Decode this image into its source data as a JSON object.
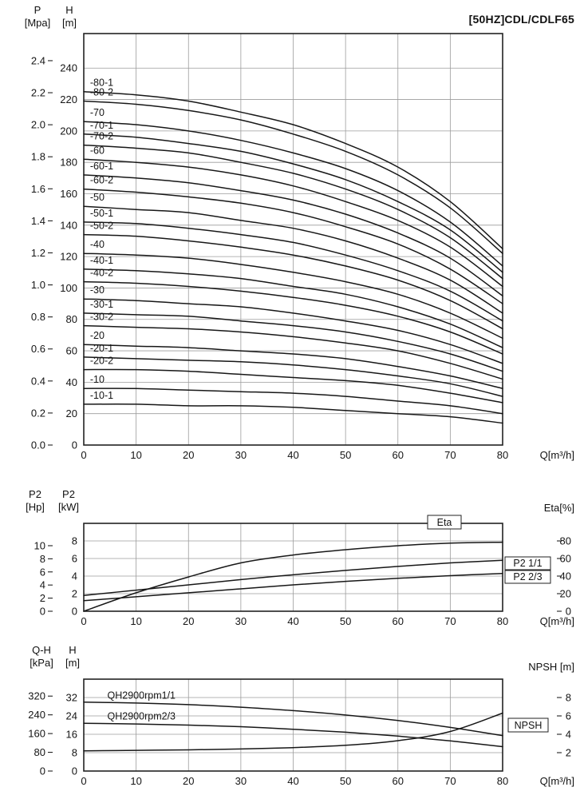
{
  "page_title": "[50HZ]CDL/CDLF65",
  "chart_data": [
    {
      "type": "line",
      "name": "qh-multistage",
      "title": "[50HZ]CDL/CDLF65",
      "xlabel": "Q[m³/h]",
      "xlim": [
        0,
        80
      ],
      "x_ticks": [
        0,
        10,
        20,
        30,
        40,
        50,
        60,
        70,
        80
      ],
      "x": [
        0,
        10,
        20,
        30,
        40,
        50,
        60,
        70,
        80
      ],
      "y_axis_inner": {
        "title": [
          "H",
          "[m]"
        ],
        "lim": [
          0,
          262
        ],
        "ticks": [
          0,
          20,
          40,
          60,
          80,
          100,
          120,
          140,
          160,
          180,
          200,
          220,
          240
        ]
      },
      "y_axis_outer": {
        "title": [
          "P",
          "[Mpa]"
        ],
        "to_inner": 101.97,
        "ticks": [
          "0.0",
          "0.2",
          "0.4",
          "0.6",
          "0.8",
          "1.0",
          "1.2",
          "1.4",
          "1.6",
          "1.8",
          "2.0",
          "2.2",
          "2.4"
        ]
      },
      "series": [
        {
          "label": "-80-1",
          "values": [
            225,
            223,
            219,
            212,
            204,
            192,
            177,
            155,
            125
          ]
        },
        {
          "label": "-80-2",
          "values": [
            219,
            217,
            213,
            207,
            198,
            187,
            172,
            151,
            122
          ]
        },
        {
          "label": "-70",
          "values": [
            206,
            204,
            200,
            194,
            186,
            176,
            162,
            142,
            114
          ]
        },
        {
          "label": "-70-1",
          "values": [
            198,
            196,
            192,
            187,
            179,
            169,
            155,
            137,
            110
          ]
        },
        {
          "label": "-70-2",
          "values": [
            191,
            189,
            186,
            180,
            173,
            163,
            150,
            132,
            106
          ]
        },
        {
          "label": "-60",
          "values": [
            182,
            180,
            177,
            172,
            165,
            155,
            143,
            126,
            101
          ]
        },
        {
          "label": "-60-1",
          "values": [
            172,
            170,
            167,
            162,
            156,
            147,
            135,
            119,
            95
          ]
        },
        {
          "label": "-60-2",
          "values": [
            163,
            161,
            158,
            154,
            148,
            139,
            128,
            112,
            90
          ]
        },
        {
          "label": "-50",
          "values": [
            152,
            150,
            148,
            143,
            138,
            130,
            119,
            105,
            84
          ]
        },
        {
          "label": "-50-1",
          "values": [
            142,
            141,
            138,
            134,
            129,
            121,
            111,
            98,
            79
          ]
        },
        {
          "label": "-50-2",
          "values": [
            134,
            133,
            130,
            126,
            121,
            114,
            105,
            92,
            74
          ]
        },
        {
          "label": "-40",
          "values": [
            122,
            121,
            119,
            115,
            110,
            104,
            96,
            84,
            68
          ]
        },
        {
          "label": "-40-1",
          "values": [
            112,
            111,
            109,
            106,
            101,
            96,
            88,
            77,
            62
          ]
        },
        {
          "label": "-40-2",
          "values": [
            104,
            103,
            101,
            98,
            94,
            89,
            82,
            72,
            58
          ]
        },
        {
          "label": "-30",
          "values": [
            93,
            92,
            90,
            88,
            84,
            79,
            73,
            64,
            52
          ]
        },
        {
          "label": "-30-1",
          "values": [
            84,
            83,
            82,
            79,
            76,
            72,
            66,
            58,
            47
          ]
        },
        {
          "label": "-30-2",
          "values": [
            76,
            75,
            74,
            72,
            69,
            65,
            60,
            52,
            42
          ]
        },
        {
          "label": "-20",
          "values": [
            64,
            63,
            62,
            60,
            58,
            55,
            50,
            44,
            36
          ]
        },
        {
          "label": "-20-1",
          "values": [
            56,
            55,
            54,
            53,
            51,
            48,
            44,
            39,
            31
          ]
        },
        {
          "label": "-20-2",
          "values": [
            48,
            48,
            47,
            45,
            43,
            41,
            38,
            33,
            27
          ]
        },
        {
          "label": "-10",
          "values": [
            36,
            36,
            35,
            34,
            33,
            31,
            28,
            25,
            20
          ]
        },
        {
          "label": "-10-1",
          "values": [
            26,
            26,
            25,
            25,
            24,
            22,
            20,
            18,
            14
          ]
        }
      ]
    },
    {
      "type": "line",
      "name": "power-efficiency",
      "xlabel": "Q[m³/h]",
      "xlim": [
        0,
        80
      ],
      "x_ticks": [
        0,
        10,
        20,
        30,
        40,
        50,
        60,
        70,
        80
      ],
      "x": [
        0,
        10,
        20,
        30,
        40,
        50,
        60,
        70,
        80
      ],
      "y_axis_inner": {
        "title": [
          "P2",
          "[kW]"
        ],
        "lim": [
          0,
          10
        ],
        "ticks": [
          0,
          2,
          4,
          6,
          8
        ]
      },
      "y_axis_outer": {
        "title": [
          "P2",
          "[Hp]"
        ],
        "to_inner": 0.7457,
        "ticks": [
          0,
          2,
          4,
          6,
          8,
          10
        ]
      },
      "y_axis_right": {
        "title": "Eta[%]",
        "lim": [
          0,
          100
        ],
        "ticks": [
          0,
          20,
          40,
          60,
          80
        ]
      },
      "series": [
        {
          "label": "Eta",
          "axis": "right",
          "values": [
            0,
            21,
            39,
            55,
            64,
            70,
            74.5,
            77.5,
            78.5
          ]
        },
        {
          "label": "P2 1/1",
          "axis": "inner",
          "values": [
            1.8,
            2.4,
            3.0,
            3.6,
            4.15,
            4.65,
            5.1,
            5.5,
            5.8
          ]
        },
        {
          "label": "P2 2/3",
          "axis": "inner",
          "values": [
            1.2,
            1.65,
            2.1,
            2.55,
            3.0,
            3.4,
            3.75,
            4.05,
            4.3
          ]
        }
      ]
    },
    {
      "type": "line",
      "name": "reduced-speed-qh-npsh",
      "xlabel": "Q[m³/h]",
      "xlim": [
        0,
        80
      ],
      "x_ticks": [
        0,
        10,
        20,
        30,
        40,
        50,
        60,
        70,
        80
      ],
      "x": [
        0,
        10,
        20,
        30,
        40,
        50,
        60,
        70,
        80
      ],
      "y_axis_inner": {
        "title": [
          "H",
          "[m]"
        ],
        "lim": [
          0,
          40
        ],
        "ticks": [
          0,
          8,
          16,
          24,
          32
        ]
      },
      "y_axis_outer": {
        "title": [
          "Q-H",
          "[kPa]"
        ],
        "to_inner": 0.10194,
        "ticks": [
          0,
          80,
          160,
          240,
          320
        ]
      },
      "y_axis_right": {
        "title": "NPSH [m]",
        "lim": [
          0,
          10
        ],
        "ticks": [
          2,
          4,
          6,
          8
        ]
      },
      "series": [
        {
          "label": "QH2900rpm1/1",
          "axis": "inner",
          "values": [
            30,
            29.6,
            28.9,
            27.8,
            26.3,
            24.4,
            22,
            19,
            15.4
          ]
        },
        {
          "label": "QH2900rpm2/3",
          "axis": "inner",
          "values": [
            20.8,
            20.5,
            20,
            19.3,
            18.2,
            16.9,
            15.2,
            13.1,
            10.6
          ]
        },
        {
          "label": "NPSH",
          "axis": "right",
          "values": [
            2.2,
            2.25,
            2.3,
            2.4,
            2.55,
            2.8,
            3.3,
            4.3,
            6.3
          ]
        }
      ]
    }
  ]
}
